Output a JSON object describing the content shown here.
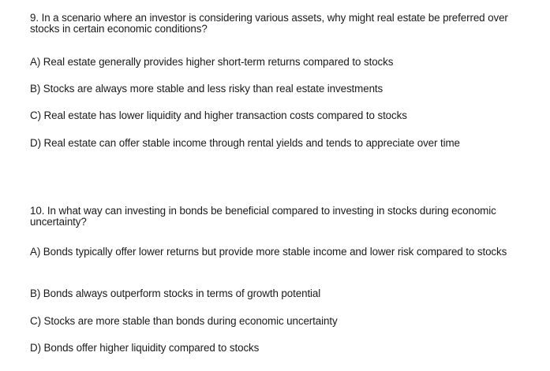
{
  "questions": [
    {
      "text": "9. In a scenario where an investor is considering various assets, why might real estate be preferred over stocks in certain economic conditions?",
      "options": [
        "A) Real estate generally provides higher short-term returns compared to stocks",
        "B) Stocks are always more stable and less risky than real estate investments",
        "C) Real estate has lower liquidity and higher transaction costs compared to stocks",
        "D) Real estate can offer stable income through rental yields and tends to appreciate over time"
      ]
    },
    {
      "text": "10. In what way can investing in bonds be beneficial compared to investing in stocks during economic uncertainty?",
      "options": [
        "A) Bonds typically offer lower returns but provide more stable income and lower risk compared to stocks",
        "B) Bonds always outperform stocks in terms of growth potential",
        "C) Stocks are more stable than bonds during economic uncertainty",
        "D) Bonds offer higher liquidity compared to stocks"
      ]
    }
  ]
}
